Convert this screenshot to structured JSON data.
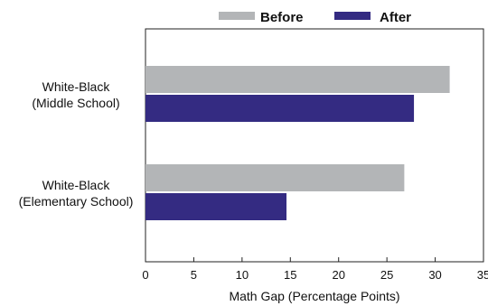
{
  "chart_data": {
    "type": "bar",
    "orientation": "horizontal",
    "categories": [
      [
        "White-Black",
        "(Middle School)"
      ],
      [
        "White-Black",
        "(Elementary School)"
      ]
    ],
    "series": [
      {
        "name": "Before",
        "color": "#b3b5b7",
        "values": [
          31.5,
          26.8
        ]
      },
      {
        "name": "After",
        "color": "#342b82",
        "values": [
          27.8,
          14.6
        ]
      }
    ],
    "title": "",
    "xlabel": "Math Gap (Percentage Points)",
    "ylabel": "",
    "xlim": [
      0,
      35
    ],
    "xticks": [
      0,
      5,
      10,
      15,
      20,
      25,
      30,
      35
    ],
    "grid": false,
    "legend_position": "top"
  }
}
